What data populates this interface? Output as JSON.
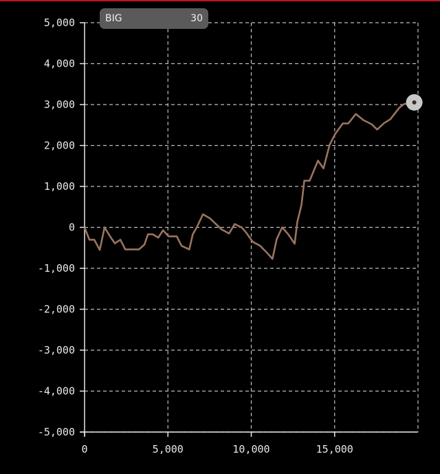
{
  "badge": {
    "label": "BIG",
    "value": "30"
  },
  "chart_data": {
    "type": "line",
    "title": "",
    "xlabel": "",
    "ylabel": "",
    "xlim": [
      0,
      20000
    ],
    "ylim": [
      -5000,
      5000
    ],
    "grid": true,
    "x_ticks": [
      0,
      5000,
      10000,
      15000
    ],
    "x_tick_labels": [
      "0",
      "5,000",
      "10,000",
      "15,000"
    ],
    "y_ticks": [
      5000,
      4000,
      3000,
      2000,
      1000,
      0,
      -1000,
      -2000,
      -3000,
      -4000,
      -5000
    ],
    "y_tick_labels": [
      "5,000",
      "4,000",
      "3,000",
      "2,000",
      "1,000",
      "0",
      "-1,000",
      "-2,000",
      "-3,000",
      "-4,000",
      "-5,000"
    ],
    "colors": {
      "line": "#9a7460",
      "grid": "#bdbdbd",
      "axis": "#e8e8e8",
      "marker": "#c8c8c8"
    },
    "series": [
      {
        "x": [
          0,
          290,
          580,
          910,
          1200,
          1530,
          1820,
          2150,
          2440,
          2770,
          3260,
          3590,
          3800,
          4090,
          4420,
          4710,
          5040,
          5530,
          5820,
          6280,
          6490,
          6730,
          7100,
          7520,
          8220,
          8670,
          9000,
          9420,
          9700,
          10080,
          10530,
          10990,
          11270,
          11520,
          11850,
          12220,
          12600,
          12760,
          13010,
          13180,
          13500,
          14000,
          14330,
          14700,
          15030,
          15490,
          15820,
          16270,
          16730,
          17220,
          17550,
          17970,
          18340,
          18870,
          19160,
          19900
        ],
        "y": [
          0,
          -300,
          -300,
          -550,
          0,
          -220,
          -390,
          -300,
          -540,
          -540,
          -540,
          -420,
          -170,
          -170,
          -250,
          -70,
          -220,
          -220,
          -450,
          -540,
          -170,
          0,
          320,
          220,
          -50,
          -150,
          80,
          0,
          -130,
          -350,
          -450,
          -640,
          -770,
          -290,
          0,
          -170,
          -400,
          130,
          550,
          1140,
          1140,
          1630,
          1440,
          2020,
          2280,
          2540,
          2540,
          2770,
          2620,
          2520,
          2390,
          2550,
          2640,
          2920,
          3010,
          3070
        ]
      }
    ]
  }
}
